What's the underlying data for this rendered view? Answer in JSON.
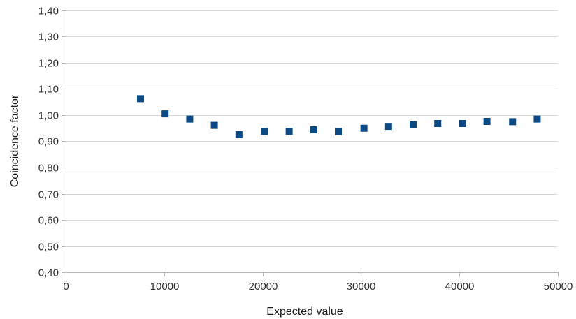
{
  "chart_data": {
    "type": "scatter",
    "title": "",
    "xlabel": "Expected value",
    "ylabel": "Coincidence factor",
    "xlim": [
      0,
      50000
    ],
    "ylim": [
      0.4,
      1.4
    ],
    "x_ticks": [
      0,
      10000,
      20000,
      30000,
      40000,
      50000
    ],
    "x_tick_labels": [
      "0",
      "10000",
      "20000",
      "30000",
      "40000",
      "50000"
    ],
    "y_ticks": [
      0.4,
      0.5,
      0.6,
      0.7,
      0.8,
      0.9,
      1.0,
      1.1,
      1.2,
      1.3,
      1.4
    ],
    "y_tick_labels": [
      "0,40",
      "0,50",
      "0,60",
      "0,70",
      "0,80",
      "0,90",
      "1,00",
      "1,10",
      "1,20",
      "1,30",
      "1,40"
    ],
    "grid": "horizontal",
    "legend": "none",
    "marker": "square",
    "marker_color": "#0b4a85",
    "series": [
      {
        "points": [
          {
            "x": 7600,
            "y": 1.063
          },
          {
            "x": 10100,
            "y": 1.005
          },
          {
            "x": 12600,
            "y": 0.985
          },
          {
            "x": 15100,
            "y": 0.961
          },
          {
            "x": 17600,
            "y": 0.926
          },
          {
            "x": 20200,
            "y": 0.938
          },
          {
            "x": 22700,
            "y": 0.938
          },
          {
            "x": 25200,
            "y": 0.944
          },
          {
            "x": 27700,
            "y": 0.937
          },
          {
            "x": 30300,
            "y": 0.95
          },
          {
            "x": 32800,
            "y": 0.957
          },
          {
            "x": 35300,
            "y": 0.963
          },
          {
            "x": 37800,
            "y": 0.968
          },
          {
            "x": 40300,
            "y": 0.968
          },
          {
            "x": 42800,
            "y": 0.976
          },
          {
            "x": 45400,
            "y": 0.975
          },
          {
            "x": 47900,
            "y": 0.985
          }
        ]
      }
    ]
  }
}
